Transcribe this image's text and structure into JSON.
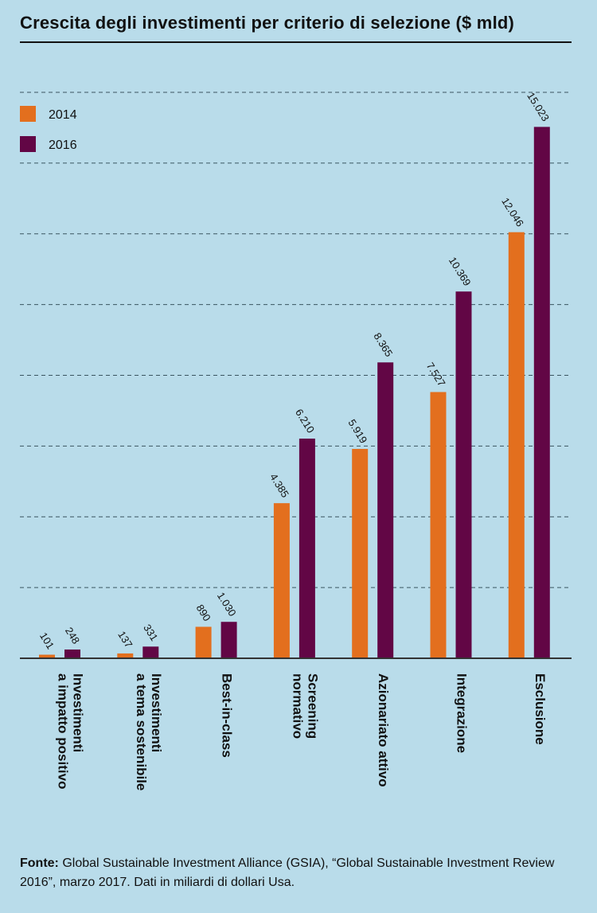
{
  "chart_data": {
    "type": "bar",
    "title": "Crescita degli investimenti per criterio di selezione ($ mld)",
    "categories": [
      [
        "Investimenti",
        "a impatto positivo"
      ],
      [
        "Investimenti",
        "a tema sostenibile"
      ],
      [
        "Best-in-class"
      ],
      [
        "Screening",
        "normativo"
      ],
      [
        "Azionariato attivo"
      ],
      [
        "Integrazione"
      ],
      [
        "Esclusione"
      ]
    ],
    "series": [
      {
        "name": "2014",
        "color": "#e36f1e",
        "values": [
          101,
          137,
          890,
          4385,
          5919,
          7527,
          12046
        ],
        "labels": [
          "101",
          "137",
          "890",
          "4.385",
          "5.919",
          "7.527",
          "12.046"
        ]
      },
      {
        "name": "2016",
        "color": "#620645",
        "values": [
          248,
          331,
          1030,
          6210,
          8365,
          10369,
          15023
        ],
        "labels": [
          "248",
          "331",
          "1.030",
          "6.210",
          "8.365",
          "10.369",
          "15.023"
        ]
      }
    ],
    "ylim": [
      0,
      16000
    ],
    "grid": true,
    "legend": "top-left"
  },
  "source": {
    "label": "Fonte:",
    "text": " Global Sustainable Investment Alliance (GSIA), “Global Sustainable Investment Review 2016”, marzo 2017. Dati in miliardi di dollari Usa."
  }
}
